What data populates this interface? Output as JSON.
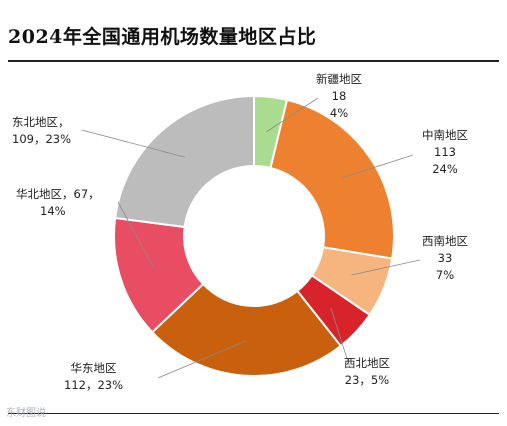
{
  "title": "2024年全国通用机场数量地区占比",
  "chart_data": {
    "type": "pie",
    "variant": "donut",
    "title": "2024年全国通用机场数量地区占比",
    "start_angle": "12 o'clock",
    "direction": "clockwise",
    "slices": [
      {
        "name": "新疆地区",
        "value": 18,
        "percent": "4%",
        "color": "#a9dc8e",
        "value_text": "18",
        "percent_text": "4%"
      },
      {
        "name": "中南地区",
        "value": 113,
        "percent": "24%",
        "color": "#ee8130",
        "value_text": "113",
        "percent_text": "24%"
      },
      {
        "name": "西南地区",
        "value": 33,
        "percent": "7%",
        "color": "#f6b47f",
        "value_text": "33",
        "percent_text": "7%"
      },
      {
        "name": "西北地区",
        "value": 23,
        "percent": "5%",
        "color": "#d8232a",
        "line2": "23，5%"
      },
      {
        "name": "华东地区",
        "value": 112,
        "percent": "23%",
        "color": "#c8600e",
        "line2": "112，23%"
      },
      {
        "name": "华北地区",
        "value": 67,
        "percent": "14%",
        "color": "#e94d63",
        "line1": "华北地区，67，",
        "line2": "14%"
      },
      {
        "name": "东北地区",
        "value": 109,
        "percent": "23%",
        "color": "#bcbcbc",
        "line1": "东北地区，",
        "line2": "109，23%"
      }
    ]
  },
  "watermark": "东财图说"
}
